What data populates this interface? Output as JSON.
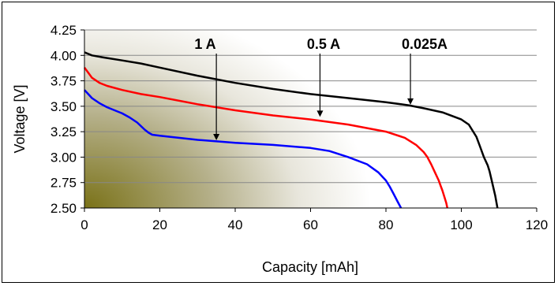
{
  "chart_data": {
    "type": "line",
    "title": "",
    "xlabel": "Capacity [mAh]",
    "ylabel": "Voltage [V]",
    "xlim": [
      0,
      120
    ],
    "ylim": [
      2.5,
      4.25
    ],
    "xticks": [
      "0",
      "20",
      "40",
      "60",
      "80",
      "100",
      "120"
    ],
    "yticks": [
      "2.50",
      "2.75",
      "3.00",
      "3.25",
      "3.50",
      "3.75",
      "4.00",
      "4.25"
    ],
    "grid": "horizontal",
    "legend": "none",
    "annotations": [
      "1 A",
      "0.5 A",
      "0.025A"
    ],
    "series": [
      {
        "name": "0.025A",
        "color": "#000000",
        "x": [
          0,
          2,
          5,
          10,
          15,
          20,
          30,
          40,
          50,
          60,
          70,
          80,
          86,
          90,
          95,
          100,
          102,
          104,
          105,
          106,
          107,
          107.5,
          108,
          108.5,
          109,
          109.3,
          109.6
        ],
        "y": [
          4.03,
          4.0,
          3.98,
          3.95,
          3.92,
          3.88,
          3.8,
          3.73,
          3.67,
          3.62,
          3.58,
          3.54,
          3.51,
          3.48,
          3.44,
          3.37,
          3.32,
          3.2,
          3.1,
          3.0,
          2.92,
          2.86,
          2.78,
          2.7,
          2.62,
          2.56,
          2.5
        ]
      },
      {
        "name": "0.5 A",
        "color": "#ff0000",
        "x": [
          0,
          1,
          2,
          4,
          6,
          10,
          15,
          20,
          30,
          40,
          50,
          60,
          70,
          80,
          85,
          88,
          90,
          91,
          92,
          93,
          94,
          94.5,
          95,
          95.5,
          96,
          96.3
        ],
        "y": [
          3.88,
          3.83,
          3.78,
          3.73,
          3.7,
          3.66,
          3.62,
          3.59,
          3.52,
          3.46,
          3.41,
          3.37,
          3.32,
          3.25,
          3.19,
          3.12,
          3.05,
          3.0,
          2.93,
          2.85,
          2.77,
          2.72,
          2.67,
          2.61,
          2.55,
          2.5
        ]
      },
      {
        "name": "1 A",
        "color": "#0000ff",
        "x": [
          0,
          1,
          2,
          4,
          6,
          8,
          10,
          12,
          14,
          16,
          17,
          18,
          20,
          25,
          30,
          40,
          50,
          60,
          65,
          70,
          75,
          78,
          80,
          81,
          82,
          83,
          84
        ],
        "y": [
          3.66,
          3.62,
          3.58,
          3.53,
          3.49,
          3.46,
          3.43,
          3.39,
          3.34,
          3.27,
          3.24,
          3.22,
          3.21,
          3.19,
          3.17,
          3.14,
          3.12,
          3.09,
          3.06,
          3.0,
          2.93,
          2.85,
          2.77,
          2.71,
          2.64,
          2.57,
          2.5
        ]
      }
    ]
  }
}
